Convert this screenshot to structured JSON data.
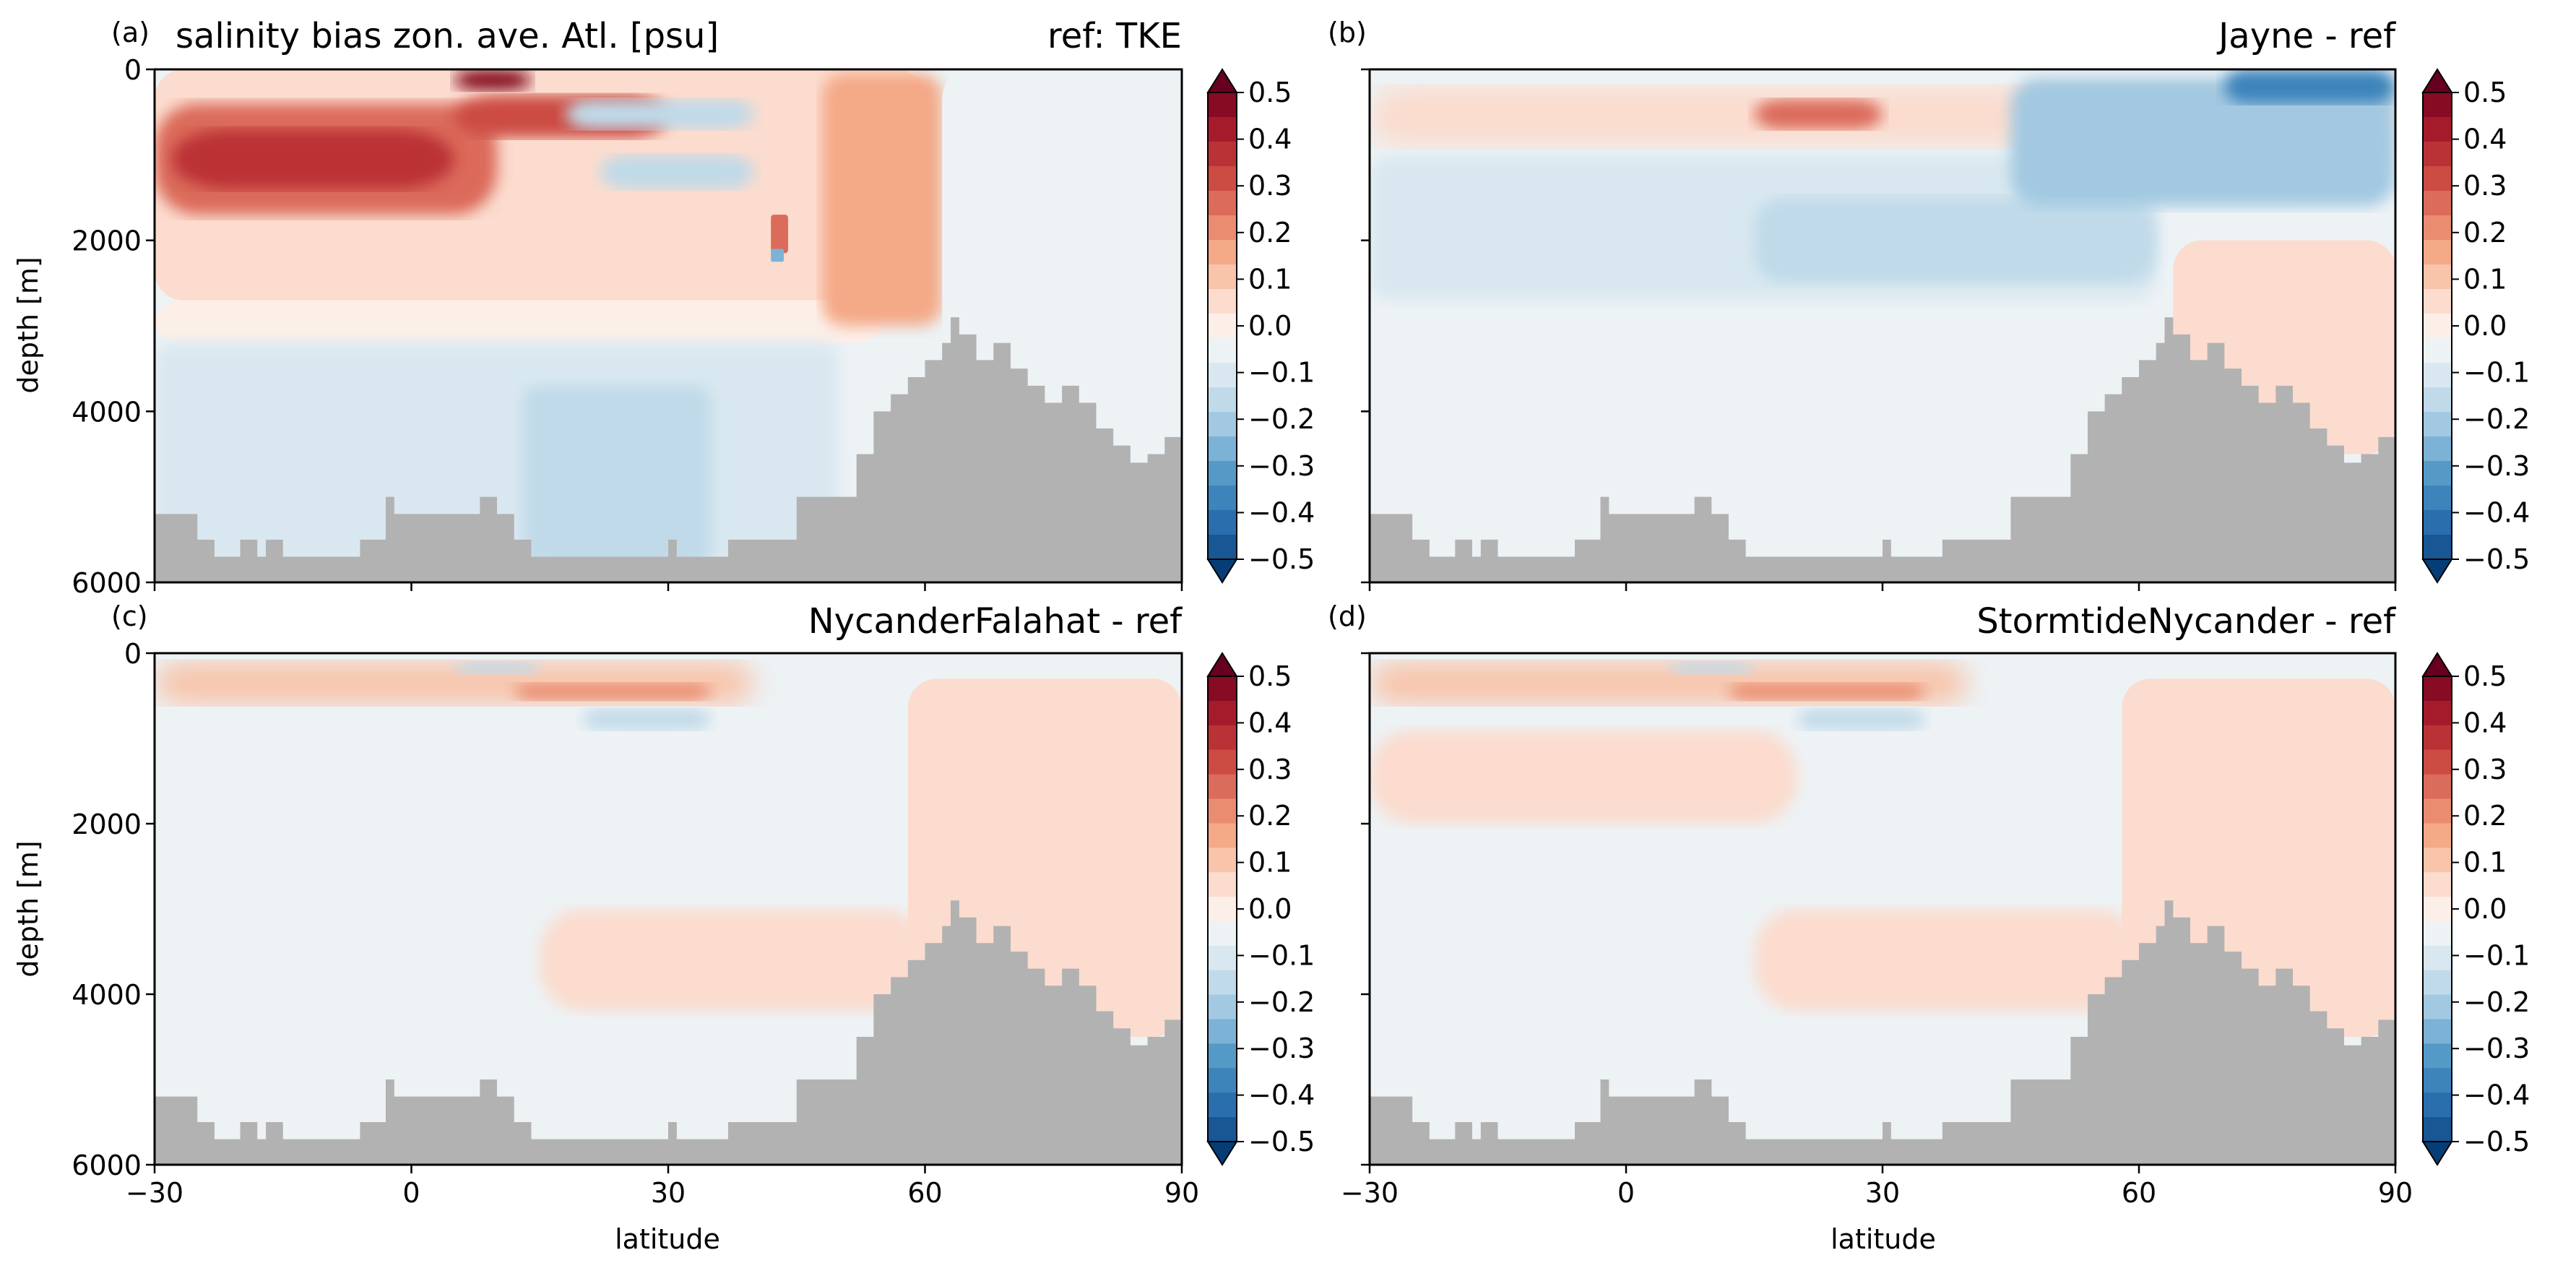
{
  "chart_data": {
    "type": "heatmap",
    "title": "salinity bias zon. ave. Atl. [psu]",
    "xlabel": "latitude",
    "ylabel": "depth [m]",
    "x_ticks": [
      "−30",
      "0",
      "30",
      "60",
      "90"
    ],
    "y_ticks": [
      "0",
      "2000",
      "4000",
      "6000"
    ],
    "xlim": [
      -30,
      90
    ],
    "ylim": [
      6000,
      0
    ],
    "colorbar": {
      "ticks": [
        "0.5",
        "0.4",
        "0.3",
        "0.2",
        "0.1",
        "0.0",
        "−0.1",
        "−0.2",
        "−0.3",
        "−0.4",
        "−0.5"
      ],
      "colors": [
        "#67001f",
        "#860b23",
        "#a51b2b",
        "#bb3236",
        "#cc4b43",
        "#db6b5a",
        "#ea8c70",
        "#f4a987",
        "#f8c4aa",
        "#fbdcce",
        "#fcefe8",
        "#edf2f5",
        "#d9e8f0",
        "#c0dae9",
        "#a2c9e1",
        "#7cb2d5",
        "#559ac7",
        "#3d84bb",
        "#2a6ead",
        "#195694",
        "#063d77"
      ],
      "extend": "both"
    },
    "panels": [
      {
        "id": "a",
        "letter": "(a)",
        "right_title": "ref: TKE",
        "show_ylabel": true,
        "show_xlabel": false,
        "variant": "ref"
      },
      {
        "id": "b",
        "letter": "(b)",
        "right_title": "Jayne - ref",
        "show_ylabel": false,
        "show_xlabel": false,
        "variant": "jayne"
      },
      {
        "id": "c",
        "letter": "(c)",
        "right_title": "NycanderFalahat - ref",
        "show_ylabel": true,
        "show_xlabel": true,
        "variant": "nf"
      },
      {
        "id": "d",
        "letter": "(d)",
        "right_title": "StormtideNycander - ref",
        "show_ylabel": false,
        "show_xlabel": true,
        "variant": "sn"
      }
    ],
    "bathymetry_depth_m": [
      [
        -30,
        5200
      ],
      [
        -28,
        5200
      ],
      [
        -25,
        5500
      ],
      [
        -23,
        5700
      ],
      [
        -20,
        5500
      ],
      [
        -18,
        5700
      ],
      [
        -17,
        5500
      ],
      [
        -15,
        5700
      ],
      [
        -8,
        5700
      ],
      [
        -6,
        5500
      ],
      [
        -3,
        5000
      ],
      [
        -2,
        5200
      ],
      [
        5,
        5200
      ],
      [
        8,
        5000
      ],
      [
        10,
        5200
      ],
      [
        12,
        5500
      ],
      [
        14,
        5700
      ],
      [
        29,
        5700
      ],
      [
        30,
        5500
      ],
      [
        31,
        5700
      ],
      [
        36,
        5700
      ],
      [
        37,
        5500
      ],
      [
        44,
        5500
      ],
      [
        45,
        5000
      ],
      [
        50,
        5000
      ],
      [
        52,
        4500
      ],
      [
        54,
        4000
      ],
      [
        56,
        3800
      ],
      [
        58,
        3600
      ],
      [
        60,
        3400
      ],
      [
        62,
        3200
      ],
      [
        63,
        2900
      ],
      [
        64,
        3100
      ],
      [
        66,
        3400
      ],
      [
        68,
        3200
      ],
      [
        70,
        3500
      ],
      [
        72,
        3700
      ],
      [
        74,
        3900
      ],
      [
        76,
        3700
      ],
      [
        78,
        3900
      ],
      [
        80,
        4200
      ],
      [
        82,
        4400
      ],
      [
        84,
        4600
      ],
      [
        86,
        4500
      ],
      [
        88,
        4300
      ],
      [
        90,
        4300
      ]
    ]
  }
}
